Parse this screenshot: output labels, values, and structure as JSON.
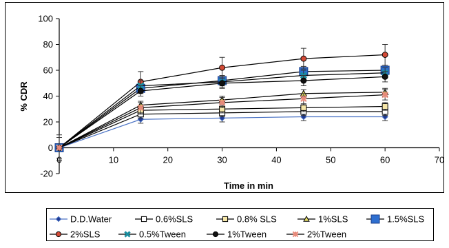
{
  "chart_data": {
    "type": "line",
    "xlabel": "Time in min",
    "ylabel": "% CDR",
    "xlim": [
      0,
      70
    ],
    "ylim": [
      -20,
      100
    ],
    "x_ticks": [
      0,
      10,
      20,
      30,
      40,
      50,
      60,
      70
    ],
    "y_ticks": [
      -20,
      0,
      20,
      40,
      60,
      80,
      100
    ],
    "x": [
      0,
      15,
      30,
      45,
      60
    ],
    "grid": false,
    "legend_position": "bottom",
    "series": [
      {
        "name": "D.D.Water",
        "values": [
          0,
          22,
          23,
          24,
          24
        ],
        "err": [
          10,
          3,
          3,
          3,
          3
        ],
        "color": "#4a72c4",
        "marker": "diamond",
        "fill": "#1f3a93"
      },
      {
        "name": "0.6%SLS",
        "values": [
          0,
          26,
          27,
          28,
          28
        ],
        "err": [
          8,
          3,
          3,
          3,
          3
        ],
        "color": "#000000",
        "marker": "square",
        "fill": "#ffffff"
      },
      {
        "name": "0.8% SLS",
        "values": [
          0,
          29,
          30,
          31,
          32
        ],
        "err": [
          8,
          3,
          3,
          3,
          3
        ],
        "color": "#000000",
        "marker": "square",
        "fill": "#f5e6a8"
      },
      {
        "name": "1%SLS",
        "values": [
          0,
          33,
          37,
          42,
          43
        ],
        "err": [
          8,
          3,
          3,
          3,
          3
        ],
        "color": "#000000",
        "marker": "triangle",
        "fill": "#e8e066"
      },
      {
        "name": "1.5%SLS",
        "values": [
          0,
          46,
          52,
          59,
          60
        ],
        "err": [
          8,
          4,
          4,
          4,
          4
        ],
        "color": "#000000",
        "marker": "big-square",
        "fill": "#2e6fd0"
      },
      {
        "name": "2%SLS",
        "values": [
          0,
          51,
          62,
          69,
          72
        ],
        "err": [
          8,
          8,
          8,
          8,
          8
        ],
        "color": "#000000",
        "marker": "circle",
        "fill": "#d24a36"
      },
      {
        "name": "0.5%Tween",
        "values": [
          0,
          48,
          51,
          56,
          58
        ],
        "err": [
          8,
          4,
          4,
          4,
          4
        ],
        "color": "#000000",
        "marker": "star",
        "fill": "#1a8fa0"
      },
      {
        "name": "1%Tween",
        "values": [
          0,
          44,
          50,
          52,
          55
        ],
        "err": [
          8,
          4,
          4,
          4,
          4
        ],
        "color": "#000000",
        "marker": "circle",
        "fill": "#111111"
      },
      {
        "name": "2%Tween",
        "values": [
          0,
          31,
          35,
          38,
          41
        ],
        "err": [
          8,
          4,
          4,
          4,
          4
        ],
        "color": "#000000",
        "marker": "asterisk",
        "fill": "#e88a7a"
      }
    ]
  }
}
